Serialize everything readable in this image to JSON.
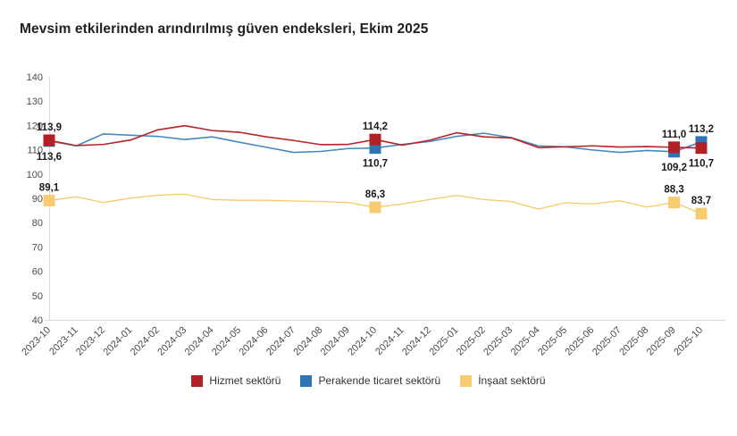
{
  "title": "Mevsim etkilerinden arındırılmış güven endeksleri, Ekim 2025",
  "colors": {
    "axis": "#d9d9d9",
    "tick_text": "#4a4a4a",
    "data_label_text": "#1a1a1a",
    "hizmet_red": "#b22025",
    "perakende_blue": "#2e75b6",
    "insaat_yellow": "#f7cc70"
  },
  "chart_data": {
    "type": "line",
    "title": "Mevsim etkilerinden arındırılmış güven endeksleri, Ekim 2025",
    "xlabel": "",
    "ylabel": "",
    "ylim": [
      40,
      140
    ],
    "yticks": [
      40,
      50,
      60,
      70,
      80,
      90,
      100,
      110,
      120,
      130,
      140
    ],
    "grid": false,
    "legend_position": "bottom",
    "categories": [
      "2023-10",
      "2023-11",
      "2023-12",
      "2024-01",
      "2024-02",
      "2024-03",
      "2024-04",
      "2024-05",
      "2024-06",
      "2024-07",
      "2024-08",
      "2024-09",
      "2024-10",
      "2024-11",
      "2024-12",
      "2025-01",
      "2025-02",
      "2025-03",
      "2025-04",
      "2025-05",
      "2025-06",
      "2025-07",
      "2025-08",
      "2025-09",
      "2025-10"
    ],
    "series": [
      {
        "name": "Hizmet sektörü",
        "color": "#b22025",
        "line_color": "#b82329",
        "values": [
          113.9,
          111.7,
          112.2,
          114.0,
          118.2,
          119.9,
          117.9,
          117.2,
          115.3,
          113.8,
          112.1,
          112.2,
          114.2,
          111.9,
          113.9,
          117.0,
          115.3,
          114.9,
          110.9,
          111.2,
          111.6,
          111.1,
          111.3,
          111.0,
          110.7
        ],
        "point_labels": {
          "0": {
            "text": "113,9",
            "pos": "above"
          },
          "12": {
            "text": "114,2",
            "pos": "above"
          },
          "23": {
            "text": "111,0",
            "pos": "above"
          },
          "24": {
            "text": "110,7",
            "pos": "below"
          }
        }
      },
      {
        "name": "Perakende ticaret sektörü",
        "color": "#2e75b6",
        "line_color": "#4589c0",
        "values": [
          113.6,
          111.6,
          116.5,
          116.0,
          115.5,
          114.2,
          115.3,
          113.1,
          111.0,
          108.9,
          109.3,
          110.5,
          110.7,
          112.2,
          113.4,
          115.5,
          116.8,
          115.0,
          111.6,
          111.2,
          109.9,
          108.9,
          109.7,
          109.2,
          113.2
        ],
        "point_labels": {
          "0": {
            "text": "113,6",
            "pos": "below"
          },
          "12": {
            "text": "110,7",
            "pos": "below"
          },
          "23": {
            "text": "109,2",
            "pos": "below"
          },
          "24": {
            "text": "113,2",
            "pos": "above"
          }
        }
      },
      {
        "name": "İnşaat sektörü",
        "color": "#f7cc70",
        "line_color": "#f6c864",
        "values": [
          89.1,
          90.6,
          88.3,
          90.1,
          91.3,
          91.7,
          89.5,
          89.2,
          89.2,
          88.9,
          88.7,
          88.3,
          86.3,
          87.7,
          89.5,
          91.2,
          89.5,
          88.7,
          85.6,
          88.2,
          87.7,
          89.0,
          86.4,
          88.3,
          83.7
        ],
        "point_labels": {
          "0": {
            "text": "89,1",
            "pos": "above"
          },
          "12": {
            "text": "86,3",
            "pos": "above"
          },
          "23": {
            "text": "88,3",
            "pos": "above"
          },
          "24": {
            "text": "83,7",
            "pos": "above"
          }
        }
      }
    ]
  },
  "legend": {
    "items": [
      {
        "label": "Hizmet sektörü",
        "color": "#b22025"
      },
      {
        "label": "Perakende ticaret sektörü",
        "color": "#2e75b6"
      },
      {
        "label": "İnşaat sektörü",
        "color": "#f7cc70"
      }
    ]
  }
}
